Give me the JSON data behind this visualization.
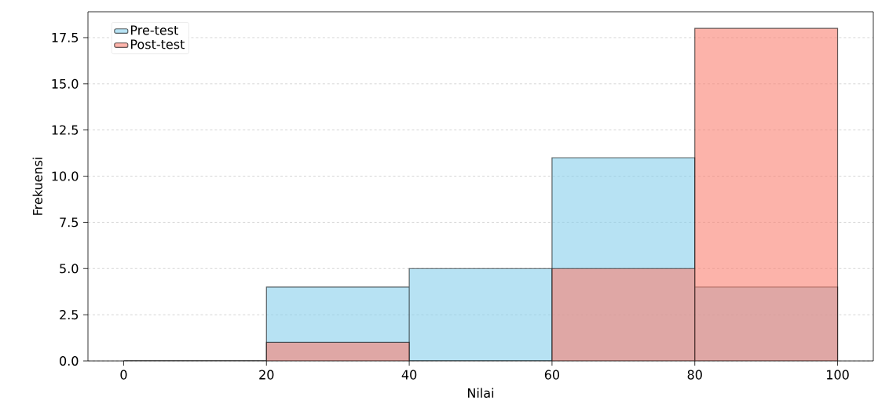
{
  "chart_data": {
    "type": "histogram",
    "xlabel": "Nilai",
    "ylabel": "Frekuensi",
    "bins": [
      0,
      20,
      40,
      60,
      80,
      100
    ],
    "series": [
      {
        "name": "Pre-test",
        "color": "#87ceeb",
        "values": [
          0,
          4,
          5,
          11,
          4
        ]
      },
      {
        "name": "Post-test",
        "color": "#fa8072",
        "values": [
          0,
          1,
          0,
          5,
          18
        ]
      }
    ],
    "xlim": [
      -5,
      105
    ],
    "ylim": [
      0,
      18.9
    ],
    "xticks": [
      0,
      20,
      40,
      60,
      80,
      100
    ],
    "yticks": [
      {
        "value": 0,
        "label": "0.0"
      },
      {
        "value": 2.5,
        "label": "2.5"
      },
      {
        "value": 5,
        "label": "5.0"
      },
      {
        "value": 7.5,
        "label": "7.5"
      },
      {
        "value": 10,
        "label": "10.0"
      },
      {
        "value": 12.5,
        "label": "12.5"
      },
      {
        "value": 15,
        "label": "15.0"
      },
      {
        "value": 17.5,
        "label": "17.5"
      }
    ],
    "grid": "y",
    "legend": "top left"
  }
}
